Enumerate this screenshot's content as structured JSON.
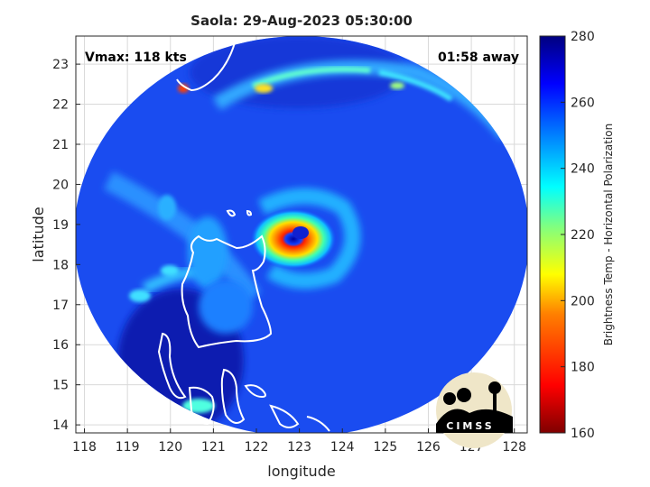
{
  "title": "Saola: 29-Aug-2023 05:30:00",
  "overlay": {
    "vmax": "Vmax: 118 kts",
    "away": "01:58 away"
  },
  "axes": {
    "xlabel": "longitude",
    "ylabel": "latitude",
    "x_ticks": [
      "118",
      "119",
      "120",
      "121",
      "122",
      "123",
      "124",
      "125",
      "126",
      "127",
      "128"
    ],
    "y_ticks": [
      "14",
      "15",
      "16",
      "17",
      "18",
      "19",
      "20",
      "21",
      "22",
      "23"
    ],
    "xlim": [
      117.8,
      128.3
    ],
    "ylim": [
      13.8,
      23.7
    ]
  },
  "colorbar": {
    "label": "Brightness Temp - Horizontal Polarization",
    "ticks": [
      "160",
      "180",
      "200",
      "220",
      "240",
      "260",
      "280"
    ],
    "range": [
      160,
      280
    ],
    "colors": [
      "#7f0000",
      "#ff0000",
      "#ff8000",
      "#ffff00",
      "#80ff80",
      "#00ffff",
      "#0080ff",
      "#0000ff",
      "#00007f"
    ]
  },
  "storm": {
    "name": "Saola",
    "eye_lon": 123.0,
    "eye_lat": 18.75
  },
  "logo": {
    "text": "CIMSS"
  }
}
